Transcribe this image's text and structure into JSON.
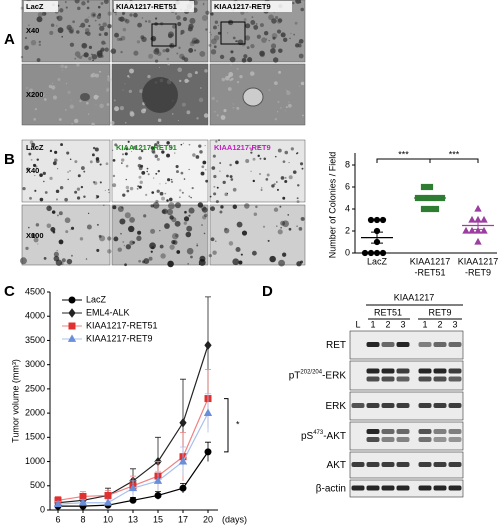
{
  "panel_a": {
    "label": "A",
    "row_labels": [
      "X40",
      "X200"
    ],
    "column_titles": [
      "LacZ",
      "KIAA1217-RET51",
      "KIAA1217-RET9"
    ]
  },
  "panel_b": {
    "label": "B",
    "row_labels": [
      "X40",
      "X100"
    ],
    "column_titles": [
      {
        "text": "LacZ",
        "color": "#000000"
      },
      {
        "text": "KIAA1217-RET51",
        "color": "#1f8a1f"
      },
      {
        "text": "KIAA1217-RET9",
        "color": "#c21ec2"
      }
    ]
  },
  "panel_c": {
    "label": "C"
  },
  "panel_d": {
    "label": "D",
    "construct": "KIAA1217",
    "groups": [
      "RET51",
      "RET9"
    ],
    "lanes": [
      "L",
      "1",
      "2",
      "3",
      "1",
      "2",
      "3"
    ],
    "rows": [
      {
        "text": "RET"
      },
      {
        "text": "pT",
        "sup": "202/204",
        "rest": "-ERK"
      },
      {
        "text": "ERK"
      },
      {
        "text": "pS",
        "sup": "473",
        "rest": "-AKT"
      },
      {
        "text": "AKT"
      },
      {
        "text": "β-actin"
      }
    ]
  },
  "chart_data": [
    {
      "type": "dot",
      "ylabel": "Number of Colonies / Field",
      "categories": [
        [
          "LacZ"
        ],
        [
          "KIAA1217",
          "-RET51"
        ],
        [
          "KIAA1217",
          "-RET9"
        ]
      ],
      "groups": [
        {
          "color": "#000000",
          "marker": "circle",
          "values": [
            3,
            3,
            3,
            2,
            1,
            0,
            0,
            0,
            0
          ],
          "mean": 1.4,
          "error": 0.5
        },
        {
          "color": "#2e7d32",
          "marker": "square",
          "values": [
            6,
            6,
            5,
            5,
            5,
            5,
            5,
            4,
            4,
            4
          ],
          "mean": 5.0,
          "error": 0.2
        },
        {
          "color": "#9b3fa0",
          "marker": "triangle",
          "values": [
            4,
            3,
            3,
            3,
            2,
            2,
            2,
            2,
            1
          ],
          "mean": 2.5,
          "error": 0.35
        }
      ],
      "ylim": [
        0,
        8
      ],
      "yticks": [
        0,
        2,
        4,
        6,
        8
      ],
      "annotations": [
        {
          "text": "***",
          "between": [
            0,
            1
          ]
        },
        {
          "text": "***",
          "between": [
            1,
            2
          ]
        }
      ]
    },
    {
      "type": "line",
      "ylabel": "Tumor volume (mm³)",
      "xlabel": "(days)",
      "categories": [
        6,
        8,
        10,
        13,
        15,
        17,
        20
      ],
      "ylim": [
        0,
        4500
      ],
      "yticks": [
        0,
        500,
        1000,
        1500,
        2000,
        2500,
        3000,
        3500,
        4000,
        4500
      ],
      "series": [
        {
          "name": "LacZ",
          "color": "#000000",
          "line": "#000000",
          "marker": "circle",
          "values": [
            80,
            80,
            100,
            200,
            300,
            450,
            1200
          ],
          "errors": [
            30,
            30,
            40,
            60,
            80,
            100,
            200
          ]
        },
        {
          "name": "EML4-ALK",
          "color": "#222222",
          "line": "#222222",
          "marker": "diamond",
          "values": [
            150,
            200,
            300,
            600,
            1000,
            1800,
            3400
          ],
          "errors": [
            50,
            100,
            150,
            250,
            500,
            900,
            1000
          ]
        },
        {
          "name": "KIAA1217-RET51",
          "color": "#e03030",
          "line": "#f08080",
          "marker": "square",
          "values": [
            200,
            280,
            300,
            500,
            700,
            1100,
            2300
          ],
          "errors": [
            80,
            100,
            100,
            200,
            300,
            500,
            600
          ]
        },
        {
          "name": "KIAA1217-RET9",
          "color": "#6a8fd8",
          "line": "#a8c0ee",
          "marker": "triangle",
          "values": [
            120,
            150,
            150,
            450,
            600,
            1000,
            2000
          ],
          "errors": [
            50,
            60,
            60,
            150,
            200,
            300,
            400
          ]
        }
      ],
      "annotations": [
        {
          "text": "*"
        }
      ]
    }
  ]
}
